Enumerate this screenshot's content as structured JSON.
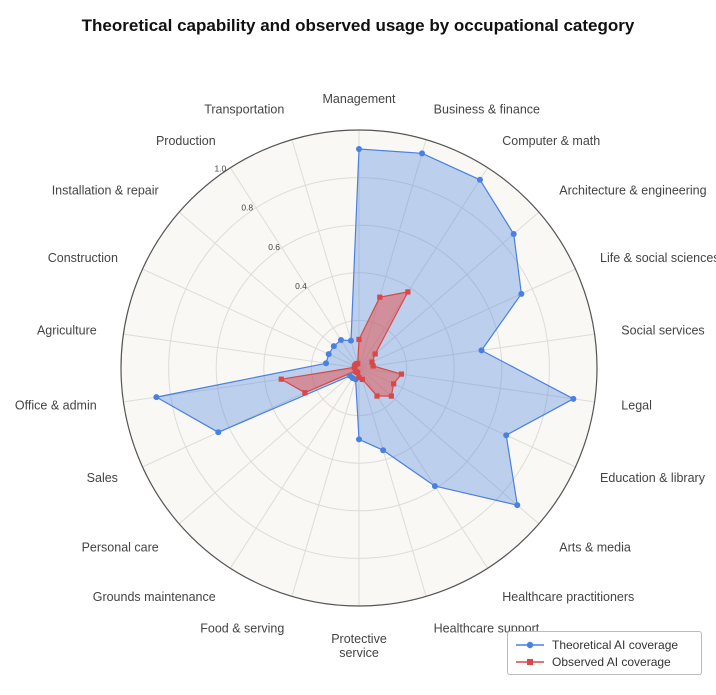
{
  "title": "Theoretical capability and observed usage by occupational category",
  "colors": {
    "theoretical": "#4a80e0",
    "observed": "#d94848",
    "background": "#f9f8f5"
  },
  "chart_data": {
    "type": "radar",
    "title": "Theoretical capability and observed usage by occupational category",
    "rlim": [
      0,
      1.0
    ],
    "ticks": [
      0.4,
      0.6,
      0.8,
      1.0
    ],
    "tick_labels": [
      "0.4",
      "0.6",
      "0.8",
      "1.0"
    ],
    "legend_position": "bottom-right",
    "categories": [
      "Management",
      "Business & finance",
      "Computer & math",
      "Architecture & engineering",
      "Life & social sciences",
      "Social services",
      "Legal",
      "Education & library",
      "Arts & media",
      "Healthcare practitioners",
      "Healthcare support",
      "Protective service",
      "Food & serving",
      "Grounds maintenance",
      "Personal care",
      "Sales",
      "Office & admin",
      "Agriculture",
      "Construction",
      "Installation & repair",
      "Production",
      "Transportation"
    ],
    "category_labels": [
      [
        "Management"
      ],
      [
        "Business & finance"
      ],
      [
        "Computer & math"
      ],
      [
        "Architecture & engineering"
      ],
      [
        "Life & social sciences"
      ],
      [
        "Social services"
      ],
      [
        "Legal"
      ],
      [
        "Education & library"
      ],
      [
        "Arts & media"
      ],
      [
        "Healthcare practitioners"
      ],
      [
        "Healthcare support"
      ],
      [
        "Protective",
        "service"
      ],
      [
        "Food & serving"
      ],
      [
        "Grounds maintenance"
      ],
      [
        "Personal care"
      ],
      [
        "Sales"
      ],
      [
        "Office & admin"
      ],
      [
        "Agriculture"
      ],
      [
        "Construction"
      ],
      [
        "Installation & repair"
      ],
      [
        "Production"
      ],
      [
        "Transportation"
      ]
    ],
    "series": [
      {
        "name": "Theoretical AI coverage",
        "values": [
          0.92,
          0.94,
          0.94,
          0.86,
          0.75,
          0.52,
          0.91,
          0.68,
          0.88,
          0.59,
          0.36,
          0.3,
          0.05,
          0.05,
          0.05,
          0.65,
          0.86,
          0.14,
          0.14,
          0.14,
          0.14,
          0.12
        ]
      },
      {
        "name": "Observed AI coverage",
        "values": [
          0.12,
          0.31,
          0.38,
          0.09,
          0.06,
          0.06,
          0.18,
          0.16,
          0.18,
          0.14,
          0.05,
          0.04,
          0.02,
          0.02,
          0.02,
          0.25,
          0.33,
          0.02,
          0.02,
          0.02,
          0.02,
          0.02
        ]
      }
    ]
  }
}
